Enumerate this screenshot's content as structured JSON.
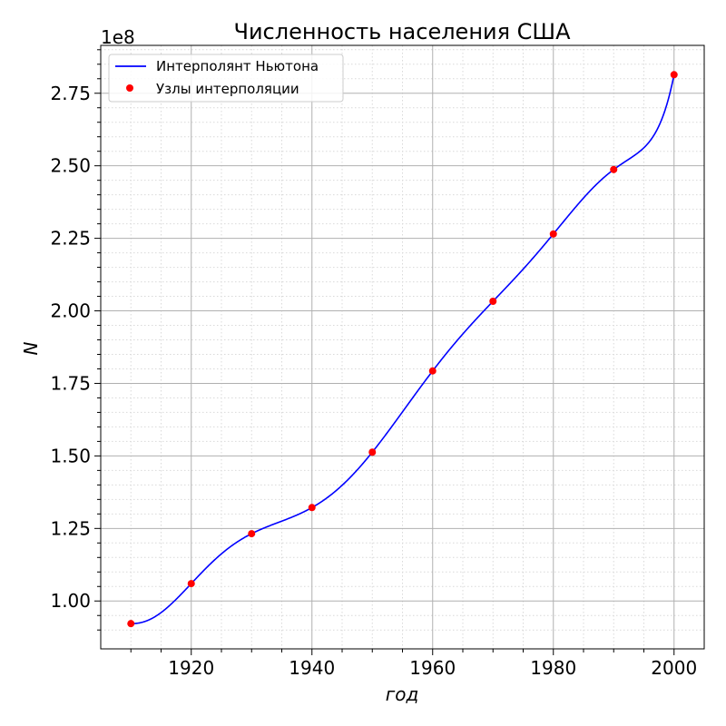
{
  "chart_data": {
    "type": "line",
    "title": "Численность населения США",
    "xlabel": "год",
    "ylabel": "N",
    "y_offset_label": "1e8",
    "y_scale": 100000000,
    "xlim": [
      1905,
      2005
    ],
    "ylim": [
      0.835,
      2.915
    ],
    "x_ticks": [
      1920,
      1940,
      1960,
      1980,
      2000
    ],
    "x_tick_labels": [
      "1920",
      "1940",
      "1960",
      "1980",
      "2000"
    ],
    "y_ticks": [
      1.0,
      1.25,
      1.5,
      1.75,
      2.0,
      2.25,
      2.5,
      2.75
    ],
    "y_tick_labels": [
      "1.00",
      "1.25",
      "1.50",
      "1.75",
      "2.00",
      "2.25",
      "2.50",
      "2.75"
    ],
    "grid": "major solid, minor dotted",
    "legend_position": "top-left",
    "series": [
      {
        "name": "Интерполянт Ньютона",
        "kind": "line",
        "color": "#0000ff",
        "x": [
          1910,
          1920,
          1930,
          1940,
          1950,
          1960,
          1970,
          1980,
          1990,
          2000
        ],
        "y": [
          0.922,
          1.06,
          1.232,
          1.322,
          1.513,
          1.793,
          2.033,
          2.265,
          2.487,
          2.814
        ]
      },
      {
        "name": "Узлы интерполяции",
        "kind": "scatter",
        "color": "#ff0000",
        "x": [
          1910,
          1920,
          1930,
          1940,
          1950,
          1960,
          1970,
          1980,
          1990,
          2000
        ],
        "y": [
          0.922,
          1.06,
          1.232,
          1.322,
          1.513,
          1.793,
          2.033,
          2.265,
          2.487,
          2.814
        ]
      }
    ]
  }
}
